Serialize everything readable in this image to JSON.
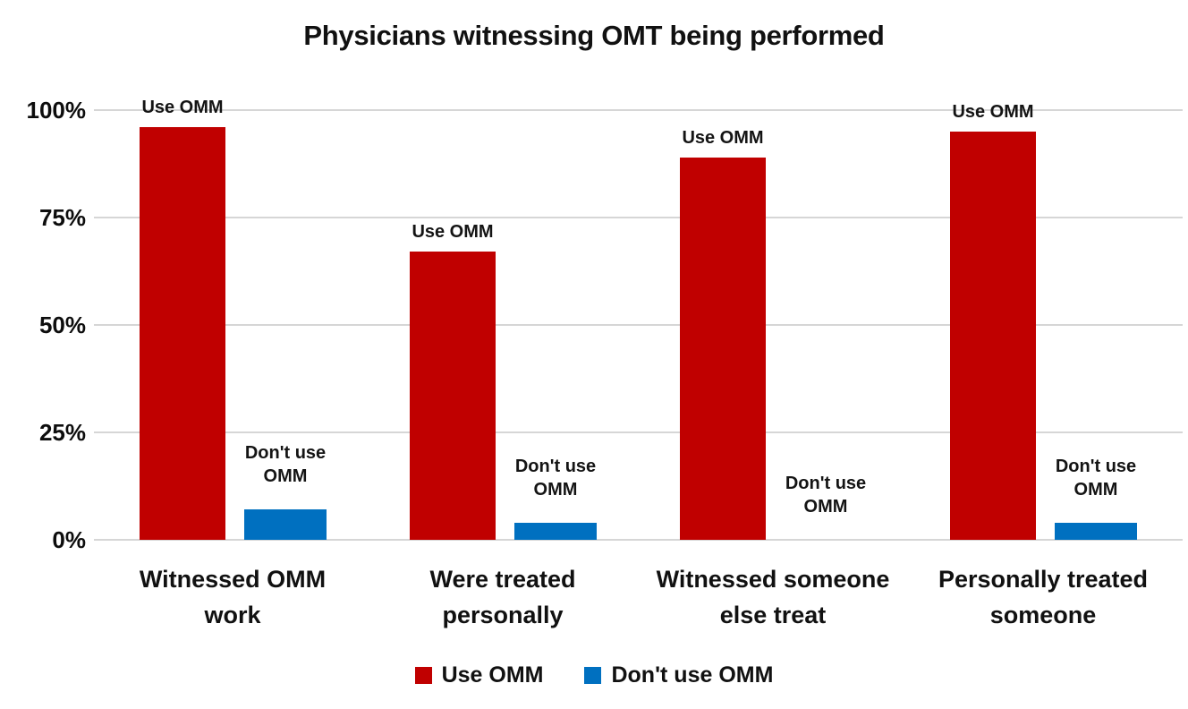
{
  "chart_data": {
    "type": "bar",
    "title": "Physicians witnessing OMT being performed",
    "categories": [
      "Witnessed OMM work",
      "Were treated personally",
      "Witnessed someone else treat",
      "Personally treated someone"
    ],
    "category_label_lines": [
      [
        "Witnessed OMM",
        "work"
      ],
      [
        "Were treated",
        "personally"
      ],
      [
        "Witnessed someone",
        "else treat"
      ],
      [
        "Personally treated",
        "someone"
      ]
    ],
    "series": [
      {
        "name": "Use OMM",
        "color": "#C00000",
        "values": [
          96,
          67,
          89,
          95
        ]
      },
      {
        "name": "Don't use OMM",
        "color": "#0070C0",
        "values": [
          7,
          4,
          0,
          4
        ]
      }
    ],
    "unit": "%",
    "ylim": [
      0,
      100
    ],
    "y_ticks": [
      {
        "label": "100%",
        "value": 100
      },
      {
        "label": "75%",
        "value": 75
      },
      {
        "label": "50%",
        "value": 50
      },
      {
        "label": "25%",
        "value": 25
      },
      {
        "label": "0%",
        "value": 0
      }
    ],
    "grid": "horizontal",
    "point_labels": "series-name-above-every-bar",
    "legend": {
      "position": "bottom",
      "items": [
        {
          "label": "Use OMM",
          "color": "#C00000"
        },
        {
          "label": "Don't use OMM",
          "color": "#0070C0"
        }
      ]
    }
  },
  "styles": {
    "background": "#FFFFFF",
    "text_color": "#151515",
    "gridline_color": "#D6D6D6"
  }
}
